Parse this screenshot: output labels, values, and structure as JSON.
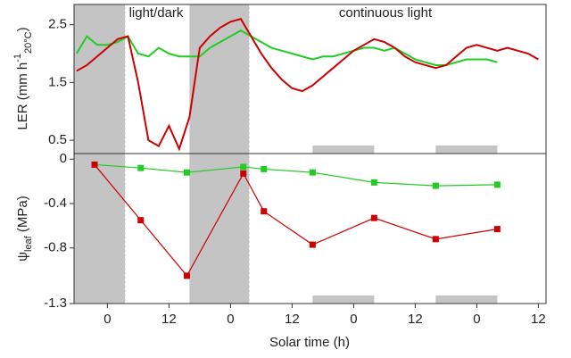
{
  "chart_data": [
    {
      "type": "line",
      "y_label": {
        "main": "LER (mm h",
        "sup": "-1",
        "sub": "20°C",
        "end": ")"
      },
      "annotations": [
        "light/dark",
        "continuous light"
      ],
      "xlim": [
        -6.5,
        85.5
      ],
      "ylim": [
        0.27,
        2.85
      ],
      "yticks": [
        0.5,
        1.5,
        2.5
      ],
      "dark_periods": [
        [
          -6.5,
          3.5
        ],
        [
          16,
          27.7
        ]
      ],
      "subjective_night": [
        [
          40,
          52
        ],
        [
          64,
          76
        ]
      ],
      "x": [
        -6,
        -4,
        -2,
        0,
        2,
        4,
        6,
        8,
        10,
        12,
        14,
        16,
        18,
        20,
        22,
        24,
        26,
        28,
        30,
        32,
        34,
        36,
        38,
        40,
        42,
        44,
        46,
        48,
        50,
        52,
        54,
        56,
        58,
        60,
        62,
        64,
        66,
        68,
        70,
        72,
        74,
        76,
        78,
        80,
        82,
        84
      ],
      "series": [
        {
          "name": "green",
          "color": "#22cc22",
          "values": [
            2.0,
            2.3,
            2.15,
            2.15,
            2.2,
            2.3,
            2.0,
            1.95,
            2.1,
            2.0,
            1.95,
            1.95,
            1.95,
            2.1,
            2.2,
            2.3,
            2.4,
            2.3,
            2.2,
            2.1,
            2.05,
            2.0,
            1.95,
            1.9,
            1.95,
            1.95,
            2.0,
            2.05,
            2.1,
            2.1,
            2.05,
            2.1,
            2.0,
            1.9,
            1.85,
            1.8,
            1.8,
            1.85,
            1.9,
            1.9,
            1.9,
            1.85,
            null,
            null,
            null,
            null
          ]
        },
        {
          "name": "red",
          "color": "#cc0000",
          "values": [
            1.7,
            1.8,
            1.95,
            2.1,
            2.25,
            2.3,
            1.5,
            0.5,
            0.4,
            0.75,
            0.35,
            0.9,
            2.1,
            2.3,
            2.45,
            2.55,
            2.6,
            2.3,
            2.0,
            1.75,
            1.55,
            1.4,
            1.35,
            1.45,
            1.6,
            1.75,
            1.9,
            2.05,
            2.15,
            2.25,
            2.2,
            2.1,
            1.95,
            1.85,
            1.8,
            1.75,
            1.8,
            1.95,
            2.1,
            2.15,
            2.1,
            2.05,
            2.1,
            2.05,
            2.0,
            1.9
          ]
        }
      ]
    },
    {
      "type": "line",
      "y_label": {
        "main": "ψ",
        "sub": "leaf",
        "end": " (MPa)"
      },
      "x_label": "Solar time (h)",
      "xlim": [
        -6.5,
        85.5
      ],
      "ylim": [
        -1.3,
        0.05
      ],
      "yticks": [
        0,
        -0.4,
        -0.8,
        -1.3
      ],
      "xticks": [
        {
          "value": 0,
          "label": "0"
        },
        {
          "value": 12,
          "label": "12"
        },
        {
          "value": 24,
          "label": "0"
        },
        {
          "value": 36,
          "label": "12"
        },
        {
          "value": 48,
          "label": "0"
        },
        {
          "value": 60,
          "label": "12"
        },
        {
          "value": 72,
          "label": "0"
        },
        {
          "value": 84,
          "label": "12"
        }
      ],
      "dark_periods": [
        [
          -6.5,
          3.5
        ],
        [
          16,
          27.7
        ]
      ],
      "subjective_night": [
        [
          40,
          52
        ],
        [
          64,
          76
        ]
      ],
      "x": [
        -2.5,
        6.5,
        15.5,
        26.5,
        30.5,
        40,
        52,
        64,
        76
      ],
      "series": [
        {
          "name": "green",
          "color": "#22cc22",
          "values": [
            -0.05,
            -0.08,
            -0.12,
            -0.07,
            -0.09,
            -0.12,
            -0.21,
            -0.24,
            -0.23
          ]
        },
        {
          "name": "red",
          "color": "#cc0000",
          "values": [
            -0.05,
            -0.55,
            -1.05,
            -0.13,
            -0.47,
            -0.77,
            -0.53,
            -0.72,
            -0.63
          ]
        }
      ]
    }
  ]
}
